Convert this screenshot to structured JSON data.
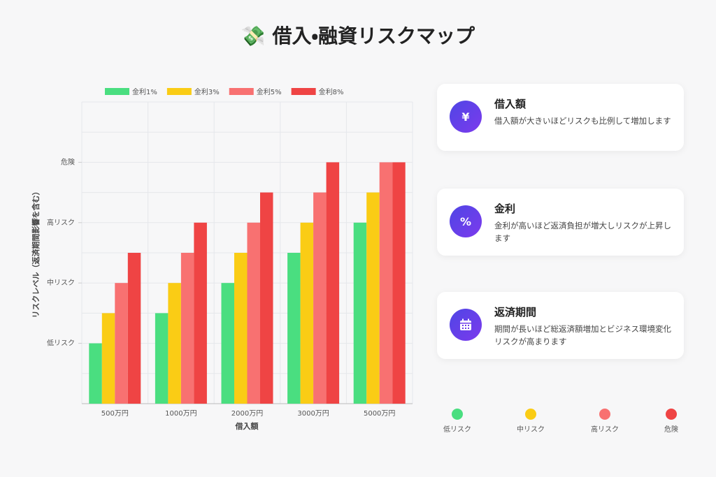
{
  "title": "💸 借入・融資リスクマップ",
  "chart_data": {
    "type": "bar",
    "categories": [
      "500万円",
      "1000万円",
      "2000万円",
      "3000万円",
      "5000万円"
    ],
    "series": [
      {
        "name": "金利1%",
        "color": "#4ade80",
        "values": [
          1,
          1.5,
          2,
          2.5,
          3
        ]
      },
      {
        "name": "金利3%",
        "color": "#facc15",
        "values": [
          1.5,
          2,
          2.5,
          3,
          3.5
        ]
      },
      {
        "name": "金利5%",
        "color": "#f87171",
        "values": [
          2,
          2.5,
          3,
          3.5,
          4
        ]
      },
      {
        "name": "金利8%",
        "color": "#ef4444",
        "values": [
          2.5,
          3,
          3.5,
          4,
          4
        ]
      }
    ],
    "xlabel": "借入額",
    "ylabel": "リスクレベル（返済期間影響を含む）",
    "ylim": [
      0,
      5
    ],
    "yticks": [
      {
        "value": 1,
        "label": "低リスク"
      },
      {
        "value": 2,
        "label": "中リスク"
      },
      {
        "value": 3,
        "label": "高リスク"
      },
      {
        "value": 4,
        "label": "危険"
      }
    ],
    "grid": true,
    "grid_step": 0.5,
    "legend": "top"
  },
  "cards": [
    {
      "icon": "¥",
      "title": "借入額",
      "text": "借入額が大きいほどリスクも比例して増加します"
    },
    {
      "icon": "%",
      "title": "金利",
      "text": "金利が高いほど返済負担が増大しリスクが上昇します"
    },
    {
      "title": "返済期間",
      "text": "期間が長いほど総返済額増加とビジネス環境変化リスクが高まります"
    }
  ],
  "risk_legend": [
    {
      "label": "低リスク",
      "color": "#4ade80"
    },
    {
      "label": "中リスク",
      "color": "#facc15"
    },
    {
      "label": "高リスク",
      "color": "#f87171"
    },
    {
      "label": "危険",
      "color": "#ef4444"
    }
  ]
}
